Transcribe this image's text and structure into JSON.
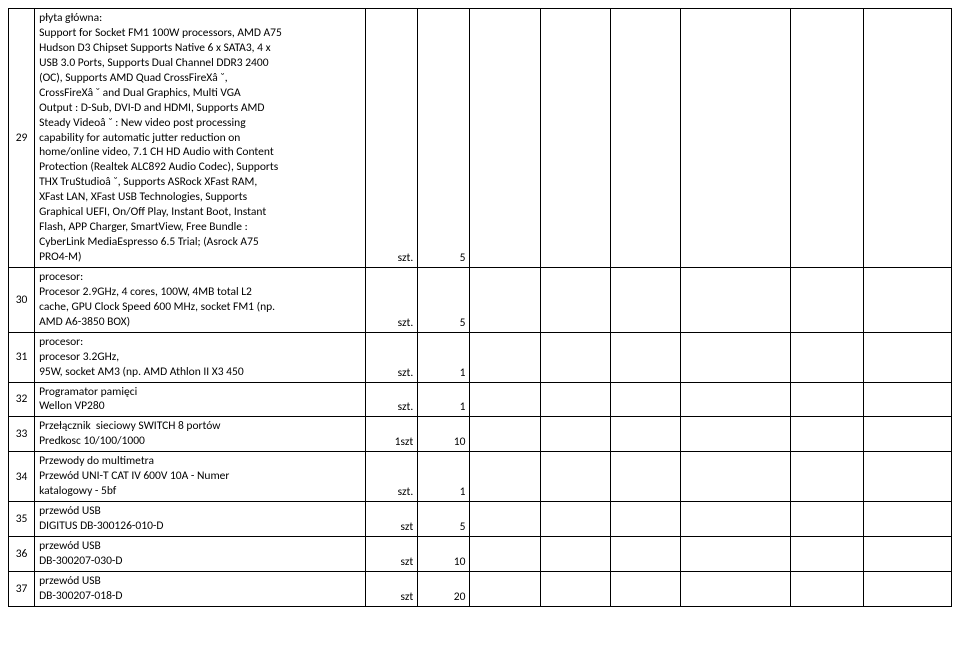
{
  "rows": [
    {
      "num": "29",
      "desc": "płyta główna:\nSupport for Socket FM1 100W processors, AMD A75\nHudson D3 Chipset Supports Native 6 x SATA3, 4 x\nUSB 3.0 Ports, Supports Dual Channel DDR3 2400\n(OC), Supports AMD Quad CrossFireXâ ˘,\nCrossFireXâ ˘ and Dual Graphics, Multi VGA\nOutput : D-Sub, DVI-D and HDMI, Supports AMD\nSteady Videoâ ˘ : New video post processing\ncapability for automatic jutter reduction on\nhome/online video, 7.1 CH HD Audio with Content\nProtection (Realtek ALC892 Audio Codec), Supports\nTHX TruStudioâ ˘, Supports ASRock XFast RAM,\nXFast LAN, XFast USB Technologies, Supports\nGraphical UEFI, On/Off Play, Instant Boot, Instant\nFlash, APP Charger, SmartView, Free Bundle :\nCyberLink MediaEspresso 6.5 Trial; (Asrock A75\nPRO4-M)",
      "unit": "szt.",
      "qty": "5"
    },
    {
      "num": "30",
      "desc": "procesor:\nProcesor 2.9GHz, 4 cores, 100W, 4MB total L2\ncache, GPU Clock Speed 600 MHz, socket FM1 (np.\nAMD A6-3850 BOX)",
      "unit": "szt.",
      "qty": "5"
    },
    {
      "num": "31",
      "desc": "procesor:\nprocesor 3.2GHz,\n95W, socket AM3 (np. AMD Athlon II X3 450",
      "unit": "szt.",
      "qty": "1"
    },
    {
      "num": "32",
      "desc": "Programator pamięci\nWellon VP280",
      "unit": "szt.",
      "qty": "1"
    },
    {
      "num": "33",
      "desc": "Przełącznik  sieciowy SWITCH 8 portów\nPredkosc 10/100/1000",
      "unit": "1szt",
      "qty": "10"
    },
    {
      "num": "34",
      "desc": "Przewody do multimetra\nPrzewód UNI-T CAT IV 600V 10A - Numer\nkatalogowy - 5bf",
      "unit": "szt.",
      "qty": "1"
    },
    {
      "num": "35",
      "desc": "przewód USB\nDIGITUS DB-300126-010-D",
      "unit": "szt",
      "qty": "5"
    },
    {
      "num": "36",
      "desc": "przewód USB\nDB-300207-030-D",
      "unit": "szt",
      "qty": "10"
    },
    {
      "num": "37",
      "desc": "przewód USB\nDB-300207-018-D",
      "unit": "szt",
      "qty": "20"
    }
  ]
}
